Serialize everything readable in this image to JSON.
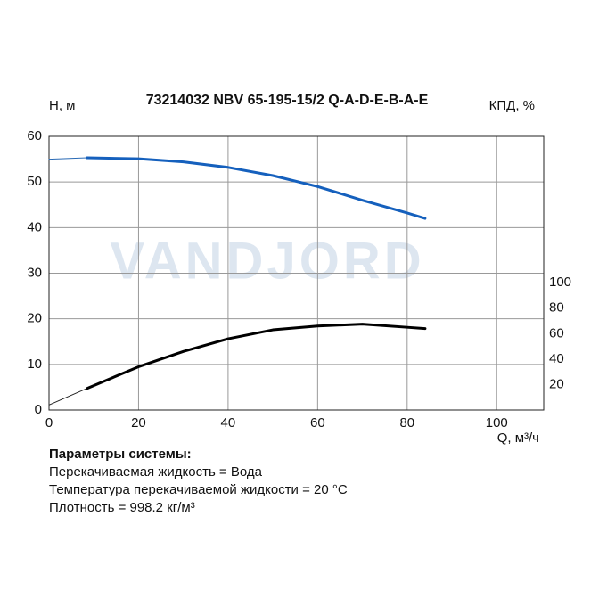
{
  "chart_data": {
    "type": "line",
    "title": "73214032 NBV 65-195-15/2 Q-A-D-E-B-A-E",
    "ylabel": "H, м",
    "y2label": "КПД, %",
    "xlabel": "Q, м³/ч",
    "watermark": "VANDJORD",
    "xlim": [
      0,
      110.5
    ],
    "xticks": [
      0,
      20,
      40,
      60,
      80,
      100
    ],
    "ylim": [
      0,
      60
    ],
    "yticks": [
      0,
      10,
      20,
      30,
      40,
      50,
      60
    ],
    "y2lim": [
      0,
      215
    ],
    "y2ticks": [
      20,
      40,
      60,
      80,
      100
    ],
    "grid": true,
    "series": [
      {
        "color": "#2a6ab5",
        "line_width": 1,
        "x": [
          0,
          8.5
        ],
        "values": [
          55.0,
          55.3
        ]
      },
      {
        "color": "#1560bd",
        "line_width": 3,
        "x": [
          8.5,
          20,
          30,
          40,
          50,
          60,
          70,
          80,
          84
        ],
        "values": [
          55.3,
          55.1,
          54.4,
          53.2,
          51.4,
          49.0,
          46.0,
          43.2,
          42.0
        ]
      },
      {
        "color": "#222222",
        "line_width": 1,
        "axis": "y2",
        "x": [
          0,
          8.5
        ],
        "values": [
          4,
          17
        ]
      },
      {
        "color": "#000000",
        "line_width": 3,
        "axis": "y2",
        "x": [
          8.5,
          20,
          30,
          40,
          50,
          60,
          70,
          80,
          84
        ],
        "values": [
          17,
          34,
          46,
          56,
          63,
          66,
          67.5,
          65,
          64
        ]
      }
    ]
  },
  "parameters": {
    "heading": "Параметры системы:",
    "lines": [
      "Перекачиваемая жидкость = Вода",
      "Температура перекачиваемой жидкости = 20 °C",
      "Плотность = 998.2 кг/м³"
    ]
  }
}
